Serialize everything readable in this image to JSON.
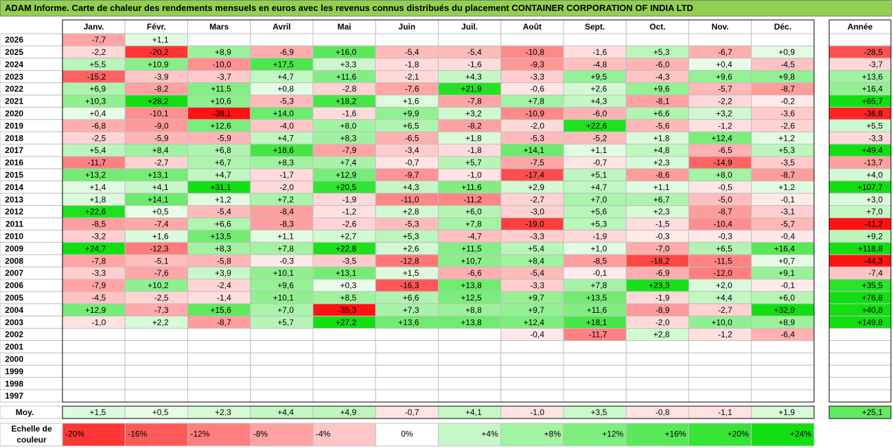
{
  "title": "ADAM Informe. Carte de chaleur des rendements mensuels en euros avec les revenus connus distribués du placement CONTAINER CORPORATION OF INDIA LTD",
  "chart_data": {
    "type": "heatmap",
    "title": "ADAM Informe. Carte de chaleur des rendements mensuels en euros avec les revenus connus distribués du placement CONTAINER CORPORATION OF INDIA LTD",
    "months": [
      "Janv.",
      "Févr.",
      "Mars",
      "Avril",
      "Mai",
      "Juin",
      "Juil.",
      "Août",
      "Sept.",
      "Oct.",
      "Nov.",
      "Déc."
    ],
    "year_header": "Année",
    "years": [
      "2026",
      "2025",
      "2024",
      "2023",
      "2022",
      "2021",
      "2020",
      "2019",
      "2018",
      "2017",
      "2016",
      "2015",
      "2014",
      "2013",
      "2012",
      "2011",
      "2010",
      "2009",
      "2008",
      "2007",
      "2006",
      "2005",
      "2004",
      "2003",
      "2002",
      "2001",
      "2000",
      "1999",
      "1998",
      "1997"
    ],
    "values": [
      [
        "-7,7",
        "+1,1",
        "",
        "",
        "",
        "",
        "",
        "",
        "",
        "",
        "",
        ""
      ],
      [
        "-2,2",
        "-20,2",
        "+8,9",
        "-6,9",
        "+16,0",
        "-5,4",
        "-5,4",
        "-10,8",
        "-1,6",
        "+5,3",
        "-6,7",
        "+0,9"
      ],
      [
        "+5,5",
        "+10,9",
        "-10,0",
        "+17,5",
        "+3,3",
        "-1,8",
        "-1,6",
        "-9,3",
        "-4,8",
        "-6,0",
        "+0,4",
        "-4,5"
      ],
      [
        "-15,2",
        "-3,9",
        "-3,7",
        "+4,7",
        "+11,6",
        "-2,1",
        "+4,3",
        "-3,3",
        "+9,5",
        "-4,3",
        "+9,6",
        "+9,8"
      ],
      [
        "+6,9",
        "-8,2",
        "+11,5",
        "+0,8",
        "-2,8",
        "-7,6",
        "+21,9",
        "-0,6",
        "+2,6",
        "+9,6",
        "-5,7",
        "-8,7"
      ],
      [
        "+10,3",
        "+28,2",
        "+10,6",
        "-5,3",
        "+18,2",
        "+1,6",
        "-7,8",
        "+7,8",
        "+4,3",
        "-8,1",
        "-2,2",
        "-0,2"
      ],
      [
        "+0,4",
        "-10,1",
        "-38,1",
        "+14,0",
        "-1,6",
        "+9,9",
        "+3,2",
        "-10,9",
        "-6,0",
        "+6,6",
        "+3,2",
        "-3,6"
      ],
      [
        "-6,8",
        "-9,0",
        "+12,6",
        "-4,0",
        "+8,0",
        "+6,5",
        "-8,2",
        "-2,0",
        "+22,6",
        "-5,6",
        "-1,2",
        "-2,6"
      ],
      [
        "-2,5",
        "-5,9",
        "-5,9",
        "+4,7",
        "+8,3",
        "-6,5",
        "+1,8",
        "-5,3",
        "-5,2",
        "+1,8",
        "+12,4",
        "+1,2"
      ],
      [
        "+5,4",
        "+8,4",
        "+6,8",
        "+18,6",
        "-7,9",
        "-3,4",
        "-1,8",
        "+14,1",
        "+1,1",
        "+4,8",
        "-6,5",
        "+5,3"
      ],
      [
        "-11,7",
        "-2,7",
        "+6,7",
        "+8,3",
        "+7,4",
        "-0,7",
        "+5,7",
        "-7,5",
        "-0,7",
        "+2,3",
        "-14,9",
        "-3,5"
      ],
      [
        "+13,2",
        "+13,1",
        "+4,7",
        "-1,7",
        "+12,9",
        "-9,7",
        "-1,0",
        "-17,4",
        "+5,1",
        "-8,6",
        "+8,0",
        "-8,7"
      ],
      [
        "+1,4",
        "+4,1",
        "+31,1",
        "-2,0",
        "+20,5",
        "+4,3",
        "+11,6",
        "+2,9",
        "+4,7",
        "+1,1",
        "-0,5",
        "+1,2"
      ],
      [
        "+1,8",
        "+14,1",
        "+1,2",
        "+7,2",
        "-1,9",
        "-11,0",
        "-11,2",
        "-2,7",
        "+7,0",
        "+6,7",
        "-5,0",
        "-0,1"
      ],
      [
        "+22,6",
        "+0,5",
        "-5,4",
        "-8,4",
        "-1,2",
        "+2,8",
        "+6,0",
        "-3,0",
        "+5,6",
        "+2,3",
        "-8,7",
        "-3,1"
      ],
      [
        "-8,5",
        "-7,4",
        "+6,6",
        "-8,3",
        "-2,6",
        "-5,3",
        "+7,8",
        "-19,0",
        "+5,3",
        "-1,5",
        "-10,4",
        "-5,7"
      ],
      [
        "-3,2",
        "+1,6",
        "+13,5",
        "+1,1",
        "+2,7",
        "+5,3",
        "-4,7",
        "-3,3",
        "-1,9",
        "-0,3",
        "-0,3",
        "-0,4"
      ],
      [
        "+24,7",
        "-12,3",
        "+8,3",
        "+7,8",
        "+22,8",
        "+2,6",
        "+11,5",
        "+5,4",
        "+1,0",
        "-7,0",
        "+6,5",
        "+16,4"
      ],
      [
        "-7,8",
        "-5,1",
        "-5,8",
        "-0,3",
        "-3,5",
        "-12,8",
        "+10,7",
        "+8,4",
        "-8,5",
        "-18,2",
        "-11,5",
        "+0,7"
      ],
      [
        "-3,3",
        "-7,6",
        "+3,9",
        "+10,1",
        "+13,1",
        "+1,5",
        "-6,6",
        "-5,4",
        "-0,1",
        "-6,9",
        "-12,0",
        "+9,1"
      ],
      [
        "-7,9",
        "+10,2",
        "-2,4",
        "+9,6",
        "+0,3",
        "-16,3",
        "+13,8",
        "-3,3",
        "+7,8",
        "+23,3",
        "+2,0",
        "-0,1"
      ],
      [
        "-4,5",
        "-2,5",
        "-1,4",
        "+10,1",
        "+8,5",
        "+6,6",
        "+12,5",
        "+9,7",
        "+13,5",
        "-1,9",
        "+4,4",
        "+6,0"
      ],
      [
        "+12,9",
        "-7,3",
        "+15,6",
        "+7,0",
        "-35,3",
        "+7,3",
        "+8,8",
        "+9,7",
        "+11,6",
        "-8,9",
        "-2,7",
        "+32,9"
      ],
      [
        "-1,0",
        "+2,2",
        "-8,7",
        "+5,7",
        "+27,2",
        "+13,6",
        "+13,8",
        "+12,4",
        "+18,1",
        "-2,0",
        "+10,0",
        "+8,9"
      ],
      [
        "",
        "",
        "",
        "",
        "",
        "",
        "",
        "-0,4",
        "-11,7",
        "+2,8",
        "-1,2",
        "-6,4"
      ],
      [
        "",
        "",
        "",
        "",
        "",
        "",
        "",
        "",
        "",
        "",
        "",
        ""
      ],
      [
        "",
        "",
        "",
        "",
        "",
        "",
        "",
        "",
        "",
        "",
        "",
        ""
      ],
      [
        "",
        "",
        "",
        "",
        "",
        "",
        "",
        "",
        "",
        "",
        "",
        ""
      ],
      [
        "",
        "",
        "",
        "",
        "",
        "",
        "",
        "",
        "",
        "",
        "",
        ""
      ],
      [
        "",
        "",
        "",
        "",
        "",
        "",
        "",
        "",
        "",
        "",
        "",
        ""
      ]
    ],
    "annual": [
      "",
      "-28,5",
      "-3,7",
      "+13,6",
      "+16,4",
      "+65,7",
      "-36,8",
      "+5,5",
      "-3,3",
      "+49,4",
      "-13,7",
      "+4,0",
      "+107,7",
      "+3,0",
      "+7,0",
      "-41,2",
      "+9,2",
      "+118,8",
      "-44,3",
      "-7,4",
      "+35,5",
      "+76,8",
      "+40,8",
      "+149,8",
      "",
      "",
      "",
      "",
      "",
      ""
    ],
    "average_label": "Moy.",
    "average_values": [
      "+1,5",
      "+0,5",
      "+2,3",
      "+4,4",
      "+4,9",
      "-0,7",
      "+4,1",
      "-1,0",
      "+3,5",
      "-0,8",
      "-1,1",
      "+1,9"
    ],
    "average_annual": "+25,1",
    "scale_label": [
      "Echelle de",
      "couleur"
    ],
    "scale_labels": [
      "-20%",
      "-16%",
      "-12%",
      "-8%",
      "-4%",
      "0%",
      "+4%",
      "+8%",
      "+12%",
      "+16%",
      "+20%",
      "+24%"
    ],
    "scale_values": [
      -20,
      -16,
      -12,
      -8,
      -4,
      0,
      4,
      8,
      12,
      16,
      20,
      24
    ],
    "colors": {
      "negative": "#ff0000",
      "neutral": "#ffffff",
      "positive": "#00dd00",
      "header": "#92d050",
      "grid": "#bfbfbf",
      "border": "#000000"
    }
  }
}
